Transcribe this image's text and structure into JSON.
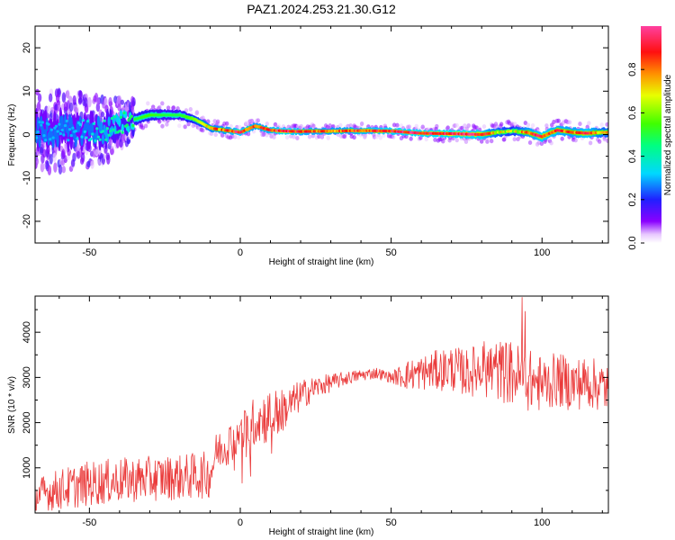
{
  "title": "PAZ1.2024.253.21.30.G12",
  "chart_data": [
    {
      "type": "heatmap",
      "xlabel": "Height of straight line (km)",
      "ylabel": "Frequency (Hz)",
      "xlim": [
        -68,
        122
      ],
      "ylim": [
        -25,
        25
      ],
      "xticks": [
        -50,
        0,
        50,
        100
      ],
      "yticks": [
        -20,
        -10,
        0,
        10,
        20
      ],
      "colorbar": {
        "label": "Normalized spectral amplitude",
        "range": [
          0,
          1
        ],
        "ticks": [
          0.0,
          0.2,
          0.4,
          0.6,
          0.8
        ],
        "tick_labels": [
          "0.0",
          "0.2",
          "0.4",
          "0.6",
          "0.8"
        ],
        "colormap": "rainbow (white-violet-blue-cyan-green-yellow-red-pink)"
      },
      "ridge": {
        "description": "frequency of peak spectral amplitude vs height",
        "x": [
          -65,
          -55,
          -45,
          -35,
          -30,
          -25,
          -20,
          -15,
          -10,
          -5,
          0,
          5,
          10,
          15,
          20,
          30,
          40,
          50,
          60,
          70,
          80,
          85,
          90,
          95,
          100,
          105,
          110,
          115,
          120
        ],
        "y": [
          0.5,
          1,
          1,
          3.5,
          4.5,
          4.5,
          4.5,
          3.5,
          1.5,
          1,
          0.5,
          2,
          1,
          0.8,
          0.7,
          0.8,
          0.9,
          0.8,
          0.3,
          0.2,
          0,
          0.5,
          0.8,
          0.5,
          -0.5,
          1,
          0.5,
          0.3,
          0.5
        ],
        "peak_amplitude": [
          0.3,
          0.3,
          0.4,
          0.5,
          0.55,
          0.5,
          0.5,
          0.6,
          0.75,
          0.8,
          0.9,
          0.8,
          0.85,
          0.95,
          0.85,
          0.8,
          0.85,
          0.9,
          0.92,
          0.95,
          0.9,
          0.7,
          0.6,
          0.8,
          0.9,
          0.85,
          0.8,
          0.9,
          0.7
        ]
      },
      "spread_hz": {
        "x": [
          -65,
          -50,
          -40,
          -35,
          -20,
          -10,
          0,
          40,
          60,
          80,
          100,
          120
        ],
        "y": [
          7,
          6,
          4.5,
          3,
          2.5,
          1.8,
          1.6,
          1.6,
          1.6,
          2.2,
          2.4,
          2.4
        ]
      }
    },
    {
      "type": "line",
      "xlabel": "Height of straight line (km)",
      "ylabel": "SNR (10 * v/v)",
      "xlim": [
        -68,
        122
      ],
      "ylim": [
        0,
        4800
      ],
      "xticks": [
        -50,
        0,
        50,
        100
      ],
      "yticks": [
        1000,
        2000,
        3000,
        4000
      ],
      "color": "#ea3a3a",
      "series": [
        {
          "envelope_x": [
            -68,
            -60,
            -50,
            -40,
            -30,
            -20,
            -15,
            -10,
            -8,
            -5,
            0,
            5,
            10,
            15,
            20,
            25,
            30,
            35,
            40,
            45,
            50,
            55,
            60,
            65,
            70,
            75,
            80,
            85,
            90,
            95,
            100,
            105,
            110,
            115,
            122
          ],
          "mean": [
            380,
            520,
            650,
            720,
            760,
            790,
            820,
            850,
            1350,
            1500,
            1750,
            2050,
            2150,
            2300,
            2600,
            2780,
            2880,
            2980,
            3050,
            3100,
            3000,
            3050,
            3100,
            3150,
            3200,
            3100,
            3200,
            3150,
            3100,
            2950,
            2850,
            2950,
            2850,
            2900,
            2750
          ],
          "amplitude": [
            380,
            460,
            500,
            500,
            500,
            500,
            520,
            520,
            420,
            480,
            450,
            550,
            620,
            450,
            350,
            250,
            200,
            150,
            130,
            130,
            120,
            330,
            380,
            450,
            500,
            520,
            620,
            680,
            720,
            700,
            620,
            600,
            600,
            580,
            560
          ],
          "max": 4950,
          "min": 60
        }
      ]
    }
  ]
}
